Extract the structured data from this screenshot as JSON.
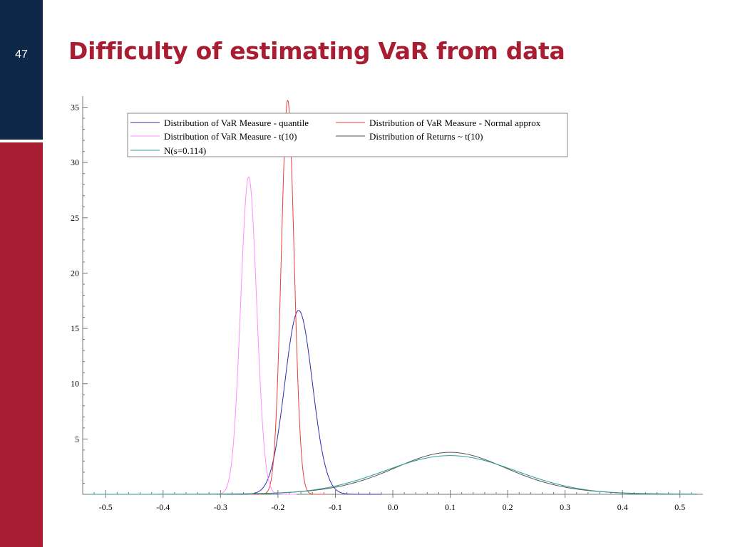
{
  "slide": {
    "number": "47",
    "title": "Difficulty of estimating VaR from data",
    "colors": {
      "navy": "#0f2748",
      "crimson": "#a91d33"
    }
  },
  "chart_data": {
    "type": "line",
    "title": "",
    "xlabel": "",
    "ylabel": "",
    "xlim": [
      -0.54,
      0.54
    ],
    "ylim": [
      0,
      36
    ],
    "xticks": [
      -0.5,
      -0.4,
      -0.3,
      -0.2,
      -0.1,
      0.0,
      0.1,
      0.2,
      0.3,
      0.4,
      0.5
    ],
    "xtick_labels": [
      "-0.5",
      "-0.4",
      "-0.3",
      "-0.2",
      "-0.1",
      "0.0",
      "0.1",
      "0.2",
      "0.3",
      "0.4",
      "0.5"
    ],
    "yticks": [
      5,
      10,
      15,
      20,
      25,
      30,
      35
    ],
    "ytick_labels": [
      "5",
      "10",
      "15",
      "20",
      "25",
      "30",
      "35"
    ],
    "legend_position": "top",
    "series": [
      {
        "name": "Distribution of VaR Measure - quantile",
        "color": "#2b2bb0",
        "kind": "normal",
        "mean": -0.164,
        "sd": 0.024,
        "scale": 1.0
      },
      {
        "name": "Distribution of VaR Measure - Normal approx",
        "color": "#e8403a",
        "kind": "normal",
        "mean": -0.183,
        "sd": 0.0112,
        "scale": 1.0
      },
      {
        "name": "Distribution of VaR Measure - t(10)",
        "color": "#ff8cff",
        "kind": "normal",
        "mean": -0.251,
        "sd": 0.0139,
        "scale": 1.0
      },
      {
        "name": "Distribution of Returns ~ t(10)",
        "color": "#555555",
        "kind": "t",
        "df": 10,
        "loc": 0.1,
        "s": 0.1026,
        "scale": 1.0
      },
      {
        "name": "N(s=0.114)",
        "color": "#2a9d94",
        "kind": "normal",
        "mean": 0.1,
        "sd": 0.114,
        "scale": 1.0
      }
    ]
  }
}
